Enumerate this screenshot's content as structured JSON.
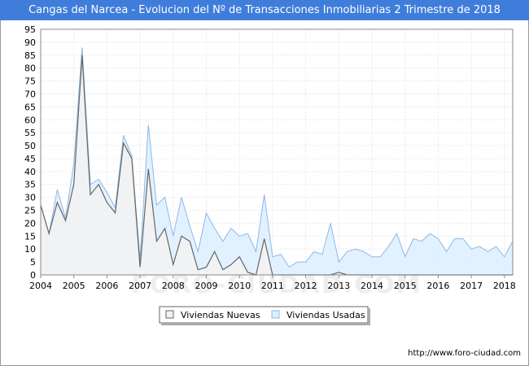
{
  "title": "Cangas del Narcea - Evolucion del Nº de Transacciones Inmobiliarias 2 Trimestre de 2018",
  "source": "http://www.foro-ciudad.com",
  "watermark": "FORO-CIUDAD.COM",
  "colors": {
    "nuevas_line": "#666666",
    "nuevas_fill": "#f2f2f2",
    "usadas_line": "#8db8e6",
    "usadas_fill": "#ddeeff"
  },
  "chart_data": {
    "type": "area",
    "xlabel": "",
    "ylabel": "",
    "xlim": [
      2004,
      2018.25
    ],
    "ylim": [
      0,
      95
    ],
    "x_ticks": [
      2004,
      2005,
      2006,
      2007,
      2008,
      2009,
      2010,
      2011,
      2012,
      2013,
      2014,
      2015,
      2016,
      2017,
      2018
    ],
    "y_ticks": [
      0,
      5,
      10,
      15,
      20,
      25,
      30,
      35,
      40,
      45,
      50,
      55,
      60,
      65,
      70,
      75,
      80,
      85,
      90,
      95
    ],
    "grid": true,
    "legend_position": "bottom-center",
    "x": [
      2004.0,
      2004.25,
      2004.5,
      2004.75,
      2005.0,
      2005.25,
      2005.5,
      2005.75,
      2006.0,
      2006.25,
      2006.5,
      2006.75,
      2007.0,
      2007.25,
      2007.5,
      2007.75,
      2008.0,
      2008.25,
      2008.5,
      2008.75,
      2009.0,
      2009.25,
      2009.5,
      2009.75,
      2010.0,
      2010.25,
      2010.5,
      2010.75,
      2011.0,
      2011.25,
      2011.5,
      2011.75,
      2012.0,
      2012.25,
      2012.5,
      2012.75,
      2013.0,
      2013.25,
      2013.5,
      2013.75,
      2014.0,
      2014.25,
      2014.5,
      2014.75,
      2015.0,
      2015.25,
      2015.5,
      2015.75,
      2016.0,
      2016.25,
      2016.5,
      2016.75,
      2017.0,
      2017.25,
      2017.5,
      2017.75,
      2018.0,
      2018.25
    ],
    "series": [
      {
        "name": "Viviendas Nuevas",
        "values": [
          27,
          16,
          28,
          21,
          35,
          85,
          31,
          35,
          28,
          24,
          51,
          45,
          3,
          41,
          13,
          18,
          4,
          15,
          13,
          2,
          3,
          9,
          2,
          4,
          7,
          1,
          0,
          14,
          0,
          0,
          0,
          0,
          0,
          0,
          0,
          0,
          1,
          0,
          0,
          0,
          0,
          0,
          0,
          0,
          0,
          0,
          0,
          0,
          0,
          0,
          0,
          0,
          0,
          0,
          0,
          0,
          0,
          0
        ]
      },
      {
        "name": "Viviendas Usadas",
        "values": [
          27,
          16,
          33,
          22,
          43,
          88,
          35,
          37,
          32,
          26,
          54,
          46,
          6,
          58,
          27,
          30,
          15,
          30,
          19,
          9,
          24,
          18,
          13,
          18,
          15,
          16,
          9,
          31,
          7,
          8,
          3,
          5,
          5,
          9,
          8,
          20,
          5,
          9,
          10,
          9,
          7,
          7,
          11,
          16,
          7,
          14,
          13,
          16,
          14,
          9,
          14,
          14,
          10,
          11,
          9,
          11,
          7,
          13
        ]
      }
    ]
  }
}
